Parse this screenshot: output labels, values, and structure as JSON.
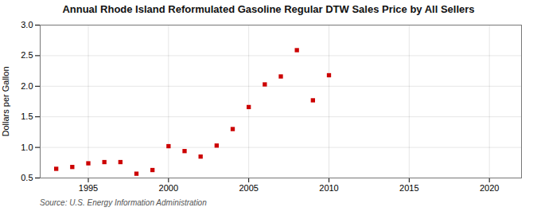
{
  "chart_data": {
    "type": "scatter",
    "title": "Annual Rhode Island Reformulated Gasoline Regular DTW Sales Price by All Sellers",
    "ylabel": "Dollars per Gallon",
    "source": "Source: U.S. Energy Information Administration",
    "x": [
      1993,
      1994,
      1995,
      1996,
      1997,
      1998,
      1999,
      2000,
      2001,
      2002,
      2003,
      2004,
      2005,
      2006,
      2007,
      2008,
      2009,
      2010
    ],
    "values": [
      0.65,
      0.68,
      0.74,
      0.76,
      0.76,
      0.57,
      0.63,
      1.02,
      0.94,
      0.85,
      1.03,
      1.3,
      1.66,
      2.03,
      2.16,
      2.59,
      1.77,
      2.18
    ],
    "color": "#cc0000",
    "marker": "square",
    "xlim": [
      1992,
      2022
    ],
    "ylim": [
      0.5,
      3.0
    ],
    "xticks": [
      1995,
      2000,
      2005,
      2010,
      2015,
      2020
    ],
    "yticks": [
      0.5,
      {
        "value": 1,
        "label": "1.0"
      },
      1.5,
      {
        "value": 2,
        "label": "2.0"
      },
      2.5,
      {
        "value": 3,
        "label": "3.0"
      }
    ],
    "grid": true
  }
}
